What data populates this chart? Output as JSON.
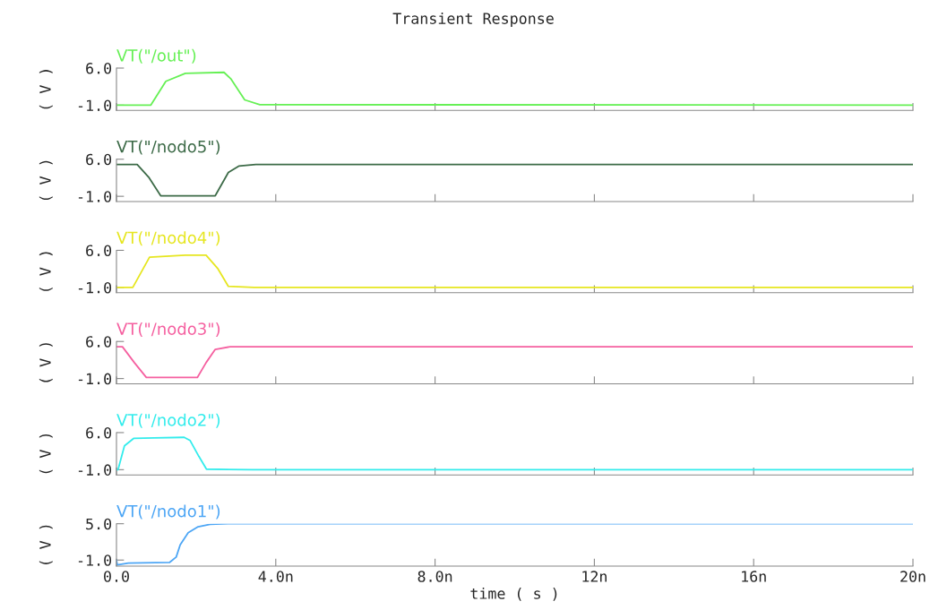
{
  "chart_data": [
    {
      "type": "line",
      "title": "Transient Response",
      "ylabel": "( V )",
      "xlim": [
        0,
        20
      ],
      "xticks": [
        0,
        4,
        8,
        12,
        16,
        20
      ],
      "ylim": [
        -2,
        6
      ],
      "yticks": [
        {
          "value": -1,
          "label": "-1.0"
        },
        {
          "value": 6,
          "label": "6.0"
        }
      ],
      "tick_labels": "y",
      "legend": "top left",
      "grid": false,
      "series": [
        {
          "name": "VT(\"/out\")",
          "color": "#66f055",
          "x": [
            0,
            0.86,
            1.24,
            1.73,
            2.7,
            2.88,
            3.22,
            3.6,
            20
          ],
          "values": [
            -1.0,
            -1.0,
            3.5,
            5.0,
            5.2,
            3.9,
            0.0,
            -0.9,
            -1.0
          ]
        }
      ]
    },
    {
      "type": "line",
      "ylabel": "( V )",
      "xlim": [
        0,
        20
      ],
      "xticks": [
        0,
        4,
        8,
        12,
        16,
        20
      ],
      "ylim": [
        -2,
        6
      ],
      "yticks": [
        {
          "value": -1,
          "label": "-1.0"
        },
        {
          "value": 6,
          "label": "6.0"
        }
      ],
      "tick_labels": "y",
      "legend": "top left",
      "grid": false,
      "series": [
        {
          "name": "VT(\"/nodo5\")",
          "color": "#3d6b48",
          "x": [
            0,
            0.52,
            0.82,
            1.11,
            2.48,
            2.81,
            3.07,
            3.5,
            20
          ],
          "values": [
            5.0,
            5.0,
            2.5,
            -0.9,
            -0.9,
            3.5,
            4.7,
            5.0,
            5.0
          ]
        }
      ]
    },
    {
      "type": "line",
      "ylabel": "( V )",
      "xlim": [
        0,
        20
      ],
      "xticks": [
        0,
        4,
        8,
        12,
        16,
        20
      ],
      "ylim": [
        -2,
        6
      ],
      "yticks": [
        {
          "value": -1,
          "label": "-1.0"
        },
        {
          "value": 6,
          "label": "6.0"
        }
      ],
      "tick_labels": "y",
      "legend": "top left",
      "grid": false,
      "series": [
        {
          "name": "VT(\"/nodo4\")",
          "color": "#e6e620",
          "x": [
            0,
            0.41,
            0.83,
            1.73,
            2.25,
            2.55,
            2.81,
            3.45,
            20
          ],
          "values": [
            -1.0,
            -1.0,
            4.7,
            5.1,
            5.1,
            2.5,
            -0.8,
            -1.0,
            -1.0
          ]
        }
      ]
    },
    {
      "type": "line",
      "ylabel": "( V )",
      "xlim": [
        0,
        20
      ],
      "xticks": [
        0,
        4,
        8,
        12,
        16,
        20
      ],
      "ylim": [
        -2,
        6
      ],
      "yticks": [
        {
          "value": -1,
          "label": "-1.0"
        },
        {
          "value": 6,
          "label": "6.0"
        }
      ],
      "tick_labels": "y",
      "legend": "top left",
      "grid": false,
      "series": [
        {
          "name": "VT(\"/nodo3\")",
          "color": "#f560a0",
          "x": [
            0,
            0.15,
            0.45,
            0.75,
            2.03,
            2.25,
            2.48,
            2.85,
            20
          ],
          "values": [
            5.0,
            5.0,
            2.0,
            -0.8,
            -0.8,
            2.0,
            4.5,
            5.0,
            5.0
          ]
        }
      ]
    },
    {
      "type": "line",
      "ylabel": "( V )",
      "xlim": [
        0,
        20
      ],
      "xticks": [
        0,
        4,
        8,
        12,
        16,
        20
      ],
      "ylim": [
        -2,
        6
      ],
      "yticks": [
        {
          "value": -1,
          "label": "-1.0"
        },
        {
          "value": 6,
          "label": "6.0"
        }
      ],
      "tick_labels": "y",
      "legend": "top left",
      "grid": false,
      "series": [
        {
          "name": "VT(\"/nodo2\")",
          "color": "#33ecec",
          "x": [
            0,
            0.04,
            0.2,
            0.43,
            0.95,
            1.7,
            1.85,
            2.07,
            2.26,
            3.4,
            20
          ],
          "values": [
            -1.0,
            -1.0,
            3.5,
            4.9,
            5.0,
            5.1,
            4.5,
            1.5,
            -0.9,
            -1.0,
            -1.0
          ]
        }
      ]
    },
    {
      "type": "line",
      "ylabel": "( V )",
      "xlabel": "time ( s )",
      "xlim": [
        0,
        20
      ],
      "xticks": [
        {
          "value": 0,
          "label": "0.0"
        },
        {
          "value": 4,
          "label": "4.0n"
        },
        {
          "value": 8,
          "label": "8.0n"
        },
        {
          "value": 12,
          "label": "12n"
        },
        {
          "value": 16,
          "label": "16n"
        },
        {
          "value": 20,
          "label": "20n"
        }
      ],
      "ylim": [
        -2,
        5
      ],
      "yticks": [
        {
          "value": -1,
          "label": "-1.0"
        },
        {
          "value": 5,
          "label": "5.0"
        }
      ],
      "legend": "top left",
      "grid": false,
      "series": [
        {
          "name": "VT(\"/nodo1\")",
          "color": "#4da6f5",
          "x": [
            0,
            0.02,
            0.3,
            1.33,
            1.5,
            1.6,
            1.8,
            2.05,
            2.35,
            2.8,
            20
          ],
          "values": [
            -1.0,
            -1.8,
            -1.5,
            -1.4,
            -0.5,
            1.5,
            3.5,
            4.5,
            4.9,
            5.0,
            5.0
          ]
        }
      ]
    }
  ]
}
